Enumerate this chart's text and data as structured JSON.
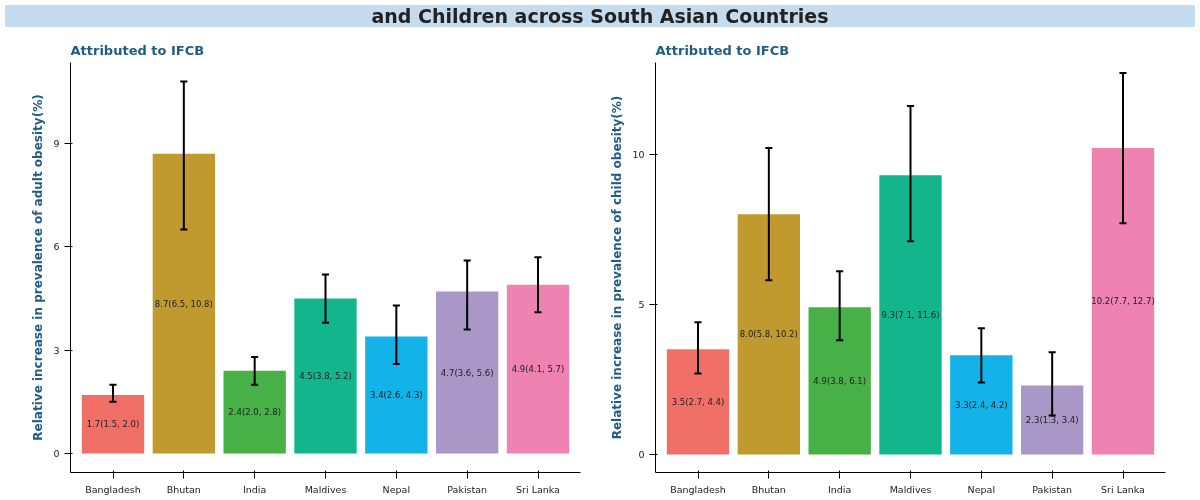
{
  "chart_data": [
    {
      "type": "bar",
      "title": "Attributed to IFCB",
      "annotations": [
        "and Children across South Asian Countries"
      ],
      "ylabel": "Relative increase in prevalence of adult obesity(%)",
      "categories": [
        "Bangladesh",
        "Bhutan",
        "India",
        "Maldives",
        "Nepal",
        "Pakistan",
        "Sri Lanka"
      ],
      "values": [
        1.7,
        8.7,
        2.4,
        4.5,
        3.4,
        4.7,
        4.9
      ],
      "errors": [
        [
          1.5,
          2.0
        ],
        [
          6.5,
          10.8
        ],
        [
          2.0,
          2.8
        ],
        [
          3.8,
          5.2
        ],
        [
          2.6,
          4.3
        ],
        [
          3.6,
          5.6
        ],
        [
          4.1,
          5.7
        ]
      ],
      "value_labels": [
        "1.7(1.5, 2.0)",
        "8.7(6.5, 10.8)",
        "2.4(2.0, 2.8)",
        "4.5(3.8, 5.2)",
        "3.4(2.6, 4.3)",
        "4.7(3.6, 5.6)",
        "4.9(4.1, 5.7)"
      ],
      "colors": [
        "#f07068",
        "#c09a2e",
        "#47b047",
        "#12b58c",
        "#13b2e8",
        "#a997c7",
        "#ee82b1"
      ],
      "ylim": [
        -0.55,
        11.35
      ],
      "yticks": [
        0,
        3,
        6,
        9
      ]
    },
    {
      "type": "bar",
      "title": "Attributed to IFCB",
      "ylabel": "Relative increase in prevalence of child obesity(%)",
      "categories": [
        "Bangladesh",
        "Bhutan",
        "India",
        "Maldives",
        "Nepal",
        "Pakistan",
        "Sri Lanka"
      ],
      "values": [
        3.5,
        8.0,
        4.9,
        9.3,
        3.3,
        2.3,
        10.2
      ],
      "errors": [
        [
          2.7,
          4.4
        ],
        [
          5.8,
          10.2
        ],
        [
          3.8,
          6.1
        ],
        [
          7.1,
          11.6
        ],
        [
          2.4,
          4.2
        ],
        [
          1.3,
          3.4
        ],
        [
          7.7,
          12.7
        ]
      ],
      "value_labels": [
        "3.5(2.7, 4.4)",
        "8.0(5.8, 10.2)",
        "4.9(3.8, 6.1)",
        "9.3(7.1, 11.6)",
        "3.3(2.4, 4.2)",
        "2.3(1.3, 3.4)",
        "10.2(7.7, 12.7)"
      ],
      "colors": [
        "#f07068",
        "#c09a2e",
        "#47b047",
        "#12b58c",
        "#13b2e8",
        "#a997c7",
        "#ee82b1"
      ],
      "ylim": [
        -0.6,
        13.05
      ],
      "yticks": [
        0,
        5,
        10
      ]
    }
  ]
}
